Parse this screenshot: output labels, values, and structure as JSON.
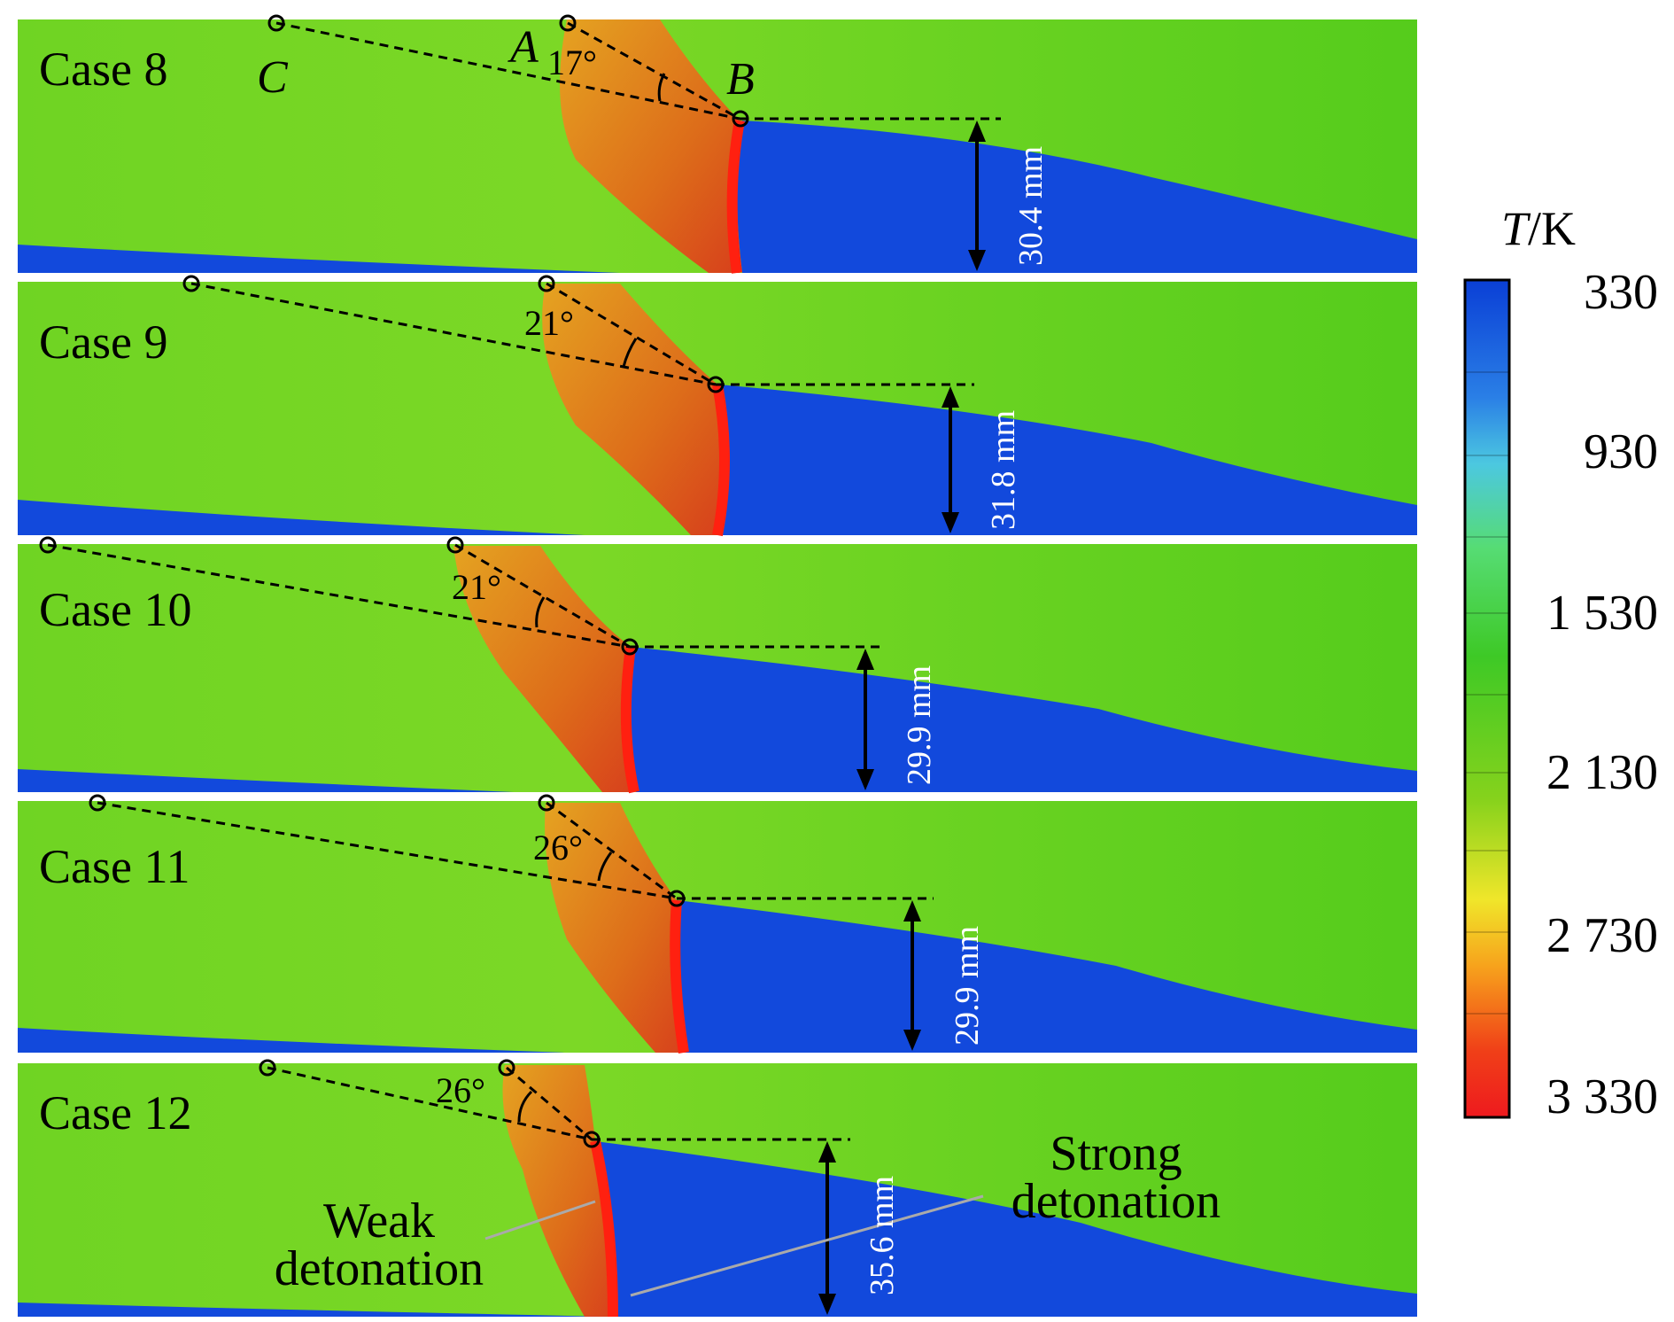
{
  "panels": [
    {
      "case": "Case 8",
      "angle": "17°",
      "height": "30.4 mm"
    },
    {
      "case": "Case 9",
      "angle": "21°",
      "height": "31.8 mm"
    },
    {
      "case": "Case 10",
      "angle": "21°",
      "height": "29.9 mm"
    },
    {
      "case": "Case 11",
      "angle": "26°",
      "height": "29.9 mm"
    },
    {
      "case": "Case 12",
      "angle": "26°",
      "height": "35.6 mm"
    }
  ],
  "points": {
    "a": "A",
    "b": "B",
    "c": "C"
  },
  "annotations": {
    "weak_line1": "Weak",
    "weak_line2": "detonation",
    "strong_line1": "Strong",
    "strong_line2": "detonation"
  },
  "colorbar": {
    "title_var": "T",
    "title_unit": "/K",
    "ticks": [
      "330",
      "930",
      "1 530",
      "2 130",
      "2 730",
      "3 330"
    ],
    "colors": [
      "#0a3fd6",
      "#3fb0e6",
      "#5ee08a",
      "#3ec926",
      "#8ad31a",
      "#f2e623",
      "#f59a1a",
      "#ee2a1e"
    ]
  },
  "colors": {
    "burned": "#5fd11f",
    "fresh": "#1249dc",
    "hot": "#ee4a18",
    "front": "#ff2010"
  }
}
